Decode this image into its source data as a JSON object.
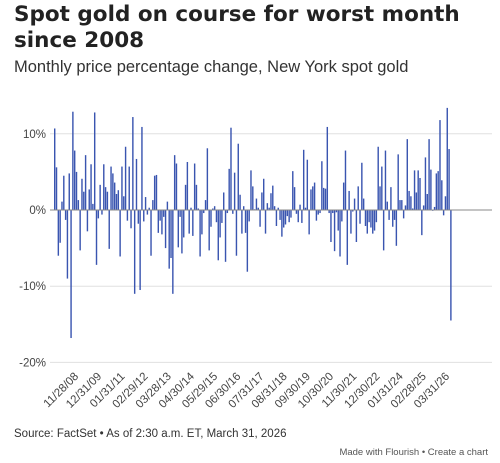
{
  "header": {
    "title": "Spot gold on course for worst month since 2008",
    "subtitle": "Monthly price percentage change, New York spot gold"
  },
  "footer": {
    "source": "Source: FactSet • As of 2:30 a.m. ET, March 31, 2026",
    "made_with": "Made with Flourish",
    "separator": " • ",
    "create": "Create a chart"
  },
  "colors": {
    "bar": "#3a55b0",
    "grid": "#e0e0e0",
    "zero": "#888888"
  },
  "chart_data": {
    "type": "bar",
    "title": "Spot gold on course for worst month since 2008",
    "subtitle": "Monthly price percentage change, New York spot gold",
    "xlabel": "",
    "ylabel": "",
    "ylim": [
      -20,
      15
    ],
    "yticks": [
      {
        "value": 10,
        "label": "10%"
      },
      {
        "value": 0,
        "label": "0%"
      },
      {
        "value": -10,
        "label": "-10%"
      },
      {
        "value": -20,
        "label": "-20%"
      }
    ],
    "xtick_labels": [
      "11/28/08",
      "12/31/09",
      "01/31/11",
      "02/29/12",
      "03/28/13",
      "04/30/14",
      "05/29/15",
      "06/30/16",
      "07/31/17",
      "08/31/18",
      "09/30/19",
      "10/30/20",
      "11/30/21",
      "12/30/22",
      "01/31/24",
      "02/28/25",
      "03/31/26"
    ],
    "start": "2008-01",
    "end": "2026-03",
    "values": [
      10.7,
      5.6,
      -6.0,
      -4.3,
      1.1,
      4.5,
      -1.3,
      -9.0,
      4.8,
      -16.8,
      12.9,
      7.8,
      5.0,
      1.3,
      -5.3,
      4.1,
      2.4,
      7.2,
      -2.8,
      2.7,
      6.0,
      0.8,
      12.8,
      -7.2,
      -1.1,
      3.3,
      -0.6,
      6.0,
      3.0,
      2.4,
      -5.1,
      5.7,
      4.8,
      3.6,
      2.1,
      2.6,
      -6.1,
      5.7,
      1.8,
      8.3,
      -1.4,
      5.7,
      -2.4,
      12.2,
      -11.0,
      6.7,
      -1.8,
      -10.5,
      10.9,
      -1.5,
      1.7,
      -0.6,
      0.3,
      -6.0,
      1.3,
      4.5,
      4.6,
      -3.0,
      -1.4,
      -3.2,
      -0.9,
      -5.0,
      1.1,
      -7.7,
      -6.3,
      -11.0,
      7.2,
      6.1,
      -4.9,
      -0.9,
      -5.7,
      -3.6,
      3.3,
      6.3,
      -3.1,
      0.3,
      -3.4,
      6.1,
      3.3,
      0.2,
      -6.1,
      -3.2,
      -0.4,
      1.3,
      8.1,
      -5.3,
      -2.2,
      0.2,
      0.5,
      -1.6,
      -6.6,
      -3.6,
      -1.7,
      2.3,
      -6.8,
      -0.4,
      5.4,
      10.8,
      -0.5,
      4.9,
      -6.0,
      8.7,
      2.0,
      -3.1,
      0.5,
      -3.0,
      -8.1,
      -1.5,
      5.2,
      3.1,
      0.1,
      1.5,
      0.3,
      -2.2,
      2.3,
      4.1,
      -3.1,
      0.9,
      0.3,
      2.2,
      3.2,
      0.5,
      -2.1,
      0.3,
      -1.3,
      -3.5,
      -2.3,
      -1.9,
      -0.8,
      -1.6,
      -1.0,
      5.1,
      3.0,
      -0.5,
      -1.6,
      0.7,
      -1.7,
      7.9,
      0.3,
      6.6,
      -3.2,
      2.7,
      3.1,
      3.6,
      -1.4,
      -0.6,
      -0.4,
      6.4,
      2.9,
      2.8,
      10.9,
      -0.4,
      -4.2,
      -0.4,
      -5.4,
      -0.3,
      -2.7,
      -6.1,
      -1.5,
      3.6,
      7.8,
      -7.2,
      2.5,
      -3.1,
      -0.2,
      1.5,
      -4.2,
      3.1,
      -1.8,
      6.2,
      1.5,
      -2.1,
      -3.1,
      -1.6,
      -2.3,
      -3.1,
      -2.7,
      -1.6,
      8.3,
      3.1,
      5.7,
      -5.3,
      7.8,
      1.1,
      -1.3,
      3.0,
      -2.2,
      -1.3,
      -4.7,
      7.3,
      1.3,
      1.3,
      -1.1,
      0.6,
      9.3,
      2.5,
      1.8,
      0.2,
      5.2,
      2.3,
      5.2,
      4.2,
      -3.3,
      0.6,
      6.9,
      2.1,
      9.3,
      5.3,
      0.0,
      0.4,
      4.8,
      5.1,
      11.8,
      3.9,
      -0.7,
      1.8,
      13.4,
      8.0,
      -14.5
    ]
  }
}
